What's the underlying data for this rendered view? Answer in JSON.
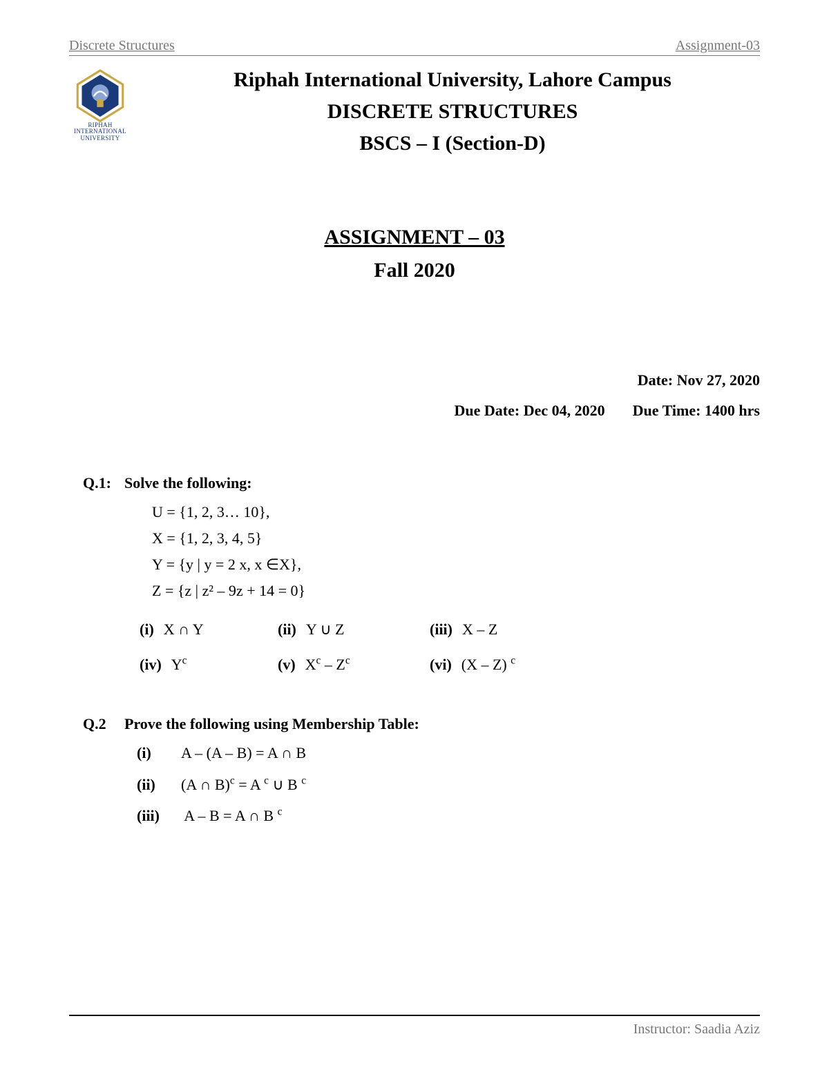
{
  "header": {
    "left": "Discrete Structures",
    "right": "Assignment-03"
  },
  "logo": {
    "caption_line1": "RIPHAH",
    "caption_line2": "INTERNATIONAL",
    "caption_line3": "UNIVERSITY",
    "colors": {
      "frame": "#c9a84a",
      "inner": "#1a3a7a",
      "accent": "#8aa4d6"
    }
  },
  "title": {
    "line1": "Riphah International University, Lahore Campus",
    "line2": "DISCRETE STRUCTURES",
    "line3": "BSCS – I (Section-D)"
  },
  "assignment": {
    "title": "ASSIGNMENT – 03",
    "term": "Fall 2020"
  },
  "meta": {
    "date": "Date: Nov 27, 2020",
    "due_date": "Due Date:  Dec 04, 2020",
    "due_time": "Due Time: 1400 hrs"
  },
  "q1": {
    "label": "Q.1:",
    "prompt": "Solve the following:",
    "sets": [
      "U = {1, 2, 3… 10},",
      "X = {1, 2, 3, 4, 5}",
      "Y = {y | y = 2 x, x ∈X},",
      "Z = {z | z² – 9z + 14 = 0}"
    ],
    "parts": [
      {
        "label": "(i)",
        "expr": "X ∩ Y"
      },
      {
        "label": "(ii)",
        "expr": "Y ∪ Z"
      },
      {
        "label": "(iii)",
        "expr": "X – Z"
      },
      {
        "label": "(iv)",
        "expr_html": "Y<sup class='cc'>c</sup>"
      },
      {
        "label": "(v)",
        "expr_html": "X<sup class='cc'>c</sup> – Z<sup class='cc'>c</sup>"
      },
      {
        "label": "(vi)",
        "expr_html": "(X – Z) <sup class='cc'>c</sup>"
      }
    ]
  },
  "q2": {
    "label": "Q.2",
    "prompt": "Prove the following using Membership Table:",
    "items": [
      {
        "label": "(i)",
        "expr": "A – (A – B) = A ∩ B"
      },
      {
        "label": "(ii)",
        "expr_html": "(A ∩ B)<sup class='cc'>c</sup> = A <sup class='cc'>c</sup>  ∪ B <sup class='cc'>c</sup>"
      },
      {
        "label": "(iii)",
        "expr_html": " A – B = A ∩ B <sup class='cc'>c</sup>"
      }
    ]
  },
  "footer": {
    "instructor": "Instructor: Saadia Aziz"
  }
}
